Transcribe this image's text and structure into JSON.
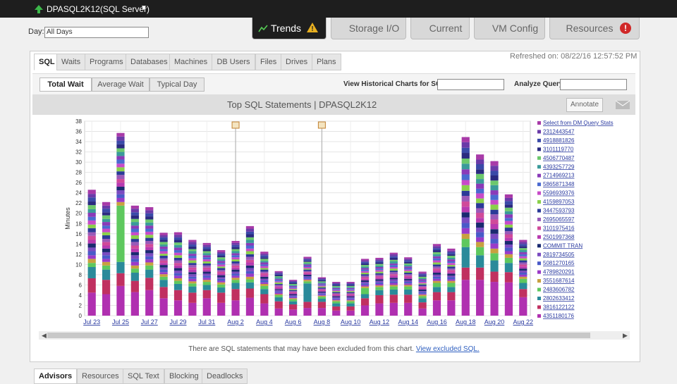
{
  "header": {
    "server": "DPASQL2K12(SQL Server)",
    "day_label": "Day:",
    "day_value": "All Days",
    "tabs": [
      "Trends",
      "Storage I/O",
      "Current",
      "VM Config",
      "Resources"
    ]
  },
  "subtabs": [
    "SQL",
    "Waits",
    "Programs",
    "Databases",
    "Machines",
    "DB Users",
    "Files",
    "Drives",
    "Plans"
  ],
  "refreshed": "Refreshed on: 08/22/16 12:57:52 PM",
  "toolbar": {
    "modes": [
      "Total Wait",
      "Average Wait",
      "Typical Day"
    ],
    "historical_label": "View Historical Charts for SQL:",
    "analyze_label": "Analyze Query:",
    "annotate": "Annotate"
  },
  "chart_data": {
    "type": "stacked-bar",
    "title": "Top SQL Statements | DPASQL2K12",
    "y_label": "Minutes",
    "categories": [
      "Jul 23",
      null,
      "Jul 25",
      null,
      "Jul 27",
      null,
      "Jul 29",
      null,
      "Jul 31",
      null,
      "Aug 2",
      null,
      "Aug 4",
      null,
      "Aug 6",
      null,
      "Aug 8",
      null,
      "Aug 10",
      null,
      "Aug 12",
      null,
      "Aug 14",
      null,
      "Aug 16",
      null,
      "Aug 18",
      null,
      "Aug 20",
      null,
      "Aug 22"
    ],
    "ylim": [
      0,
      38
    ],
    "yticks": [
      0,
      2,
      4,
      6,
      8,
      10,
      12,
      14,
      16,
      18,
      20,
      22,
      24,
      26,
      28,
      30,
      32,
      34,
      36,
      38
    ],
    "grid": true,
    "series": [
      {
        "name": "Select from DM Query Stats",
        "color": "#a83aa8",
        "values": [
          0.8,
          0.7,
          0.7,
          0.6,
          0.6,
          0.5,
          0.5,
          0.4,
          0.4,
          0.4,
          0.4,
          0.5,
          0.4,
          0.2,
          0.2,
          0.3,
          0.2,
          0.2,
          0.2,
          0.3,
          0.3,
          0.3,
          0.3,
          0.3,
          0.4,
          0.4,
          1,
          1,
          0.9,
          0.7,
          0.4
        ]
      },
      {
        "name": "2312443547",
        "color": "#6a3aa8",
        "values": [
          0.7,
          0.6,
          0.8,
          0.7,
          0.6,
          0.4,
          0.5,
          0.5,
          0.4,
          0.3,
          0.4,
          0.6,
          0.3,
          0.3,
          0.2,
          0.2,
          0.2,
          0.2,
          0.2,
          0.3,
          0.3,
          0.4,
          0.3,
          0.2,
          0.4,
          0.3,
          1.1,
          0.9,
          1,
          0.6,
          0.4
        ]
      },
      {
        "name": "4918881826",
        "color": "#3a4aa8",
        "values": [
          0.8,
          0.7,
          0.7,
          0.6,
          0.6,
          0.5,
          0.5,
          0.4,
          0.4,
          0.4,
          0.4,
          0.5,
          0.4,
          0.2,
          0.2,
          0.3,
          0.2,
          0.2,
          0.2,
          0.3,
          0.3,
          0.3,
          0.3,
          0.3,
          0.4,
          0.4,
          1,
          1,
          0.9,
          0.7,
          0.4
        ]
      },
      {
        "name": "3101119770",
        "color": "#2a2a80",
        "values": [
          0.7,
          0.6,
          0.8,
          0.7,
          0.6,
          0.4,
          0.5,
          0.5,
          0.4,
          0.3,
          0.4,
          0.6,
          0.3,
          0.3,
          0.2,
          0.2,
          0.2,
          0.2,
          0.2,
          0.3,
          0.3,
          0.4,
          0.3,
          0.2,
          0.4,
          0.3,
          1.1,
          0.9,
          1,
          0.6,
          0.4
        ]
      },
      {
        "name": "4506770487",
        "color": "#6cc86c",
        "values": [
          0.8,
          0.7,
          0.7,
          0.6,
          0.6,
          0.5,
          0.5,
          0.4,
          0.4,
          0.4,
          0.4,
          0.5,
          0.4,
          0.2,
          0.2,
          0.3,
          0.2,
          0.2,
          0.2,
          0.3,
          0.3,
          0.3,
          0.3,
          0.3,
          0.4,
          0.4,
          1,
          1,
          0.9,
          0.7,
          0.4
        ]
      },
      {
        "name": "4393257729",
        "color": "#3a9a9a",
        "values": [
          0.7,
          0.6,
          0.8,
          0.7,
          0.6,
          0.4,
          0.5,
          0.5,
          0.4,
          0.3,
          0.4,
          0.6,
          0.3,
          0.3,
          0.2,
          0.2,
          0.2,
          0.2,
          0.2,
          0.3,
          0.3,
          0.4,
          0.3,
          0.2,
          0.4,
          0.3,
          1.1,
          0.9,
          1,
          0.6,
          0.4
        ]
      },
      {
        "name": "2714969213",
        "color": "#8a3ab8",
        "values": [
          0.8,
          0.7,
          0.7,
          0.6,
          0.6,
          0.5,
          0.5,
          0.4,
          0.4,
          0.4,
          0.4,
          0.5,
          0.4,
          0.2,
          0.2,
          0.3,
          0.2,
          0.2,
          0.2,
          0.3,
          0.3,
          0.3,
          0.3,
          0.3,
          0.4,
          0.4,
          1,
          1,
          0.9,
          0.7,
          0.4
        ]
      },
      {
        "name": "5865871348",
        "color": "#4a6ad0",
        "values": [
          0.7,
          0.6,
          0.8,
          0.7,
          0.6,
          0.4,
          0.5,
          0.5,
          0.4,
          0.3,
          0.4,
          0.6,
          0.3,
          0.3,
          0.2,
          0.2,
          0.2,
          0.2,
          0.2,
          0.3,
          0.3,
          0.4,
          0.3,
          0.2,
          0.4,
          0.3,
          1.1,
          0.9,
          1,
          0.6,
          0.4
        ]
      },
      {
        "name": "5596939376",
        "color": "#c84ac8",
        "values": [
          0.8,
          0.7,
          0.7,
          0.6,
          0.6,
          0.5,
          0.5,
          0.4,
          0.4,
          0.4,
          0.4,
          0.5,
          0.4,
          0.2,
          0.2,
          0.3,
          0.2,
          0.2,
          0.2,
          0.3,
          0.3,
          0.3,
          0.3,
          0.3,
          0.4,
          0.4,
          1,
          1,
          0.9,
          0.7,
          0.4
        ]
      },
      {
        "name": "4159897053",
        "color": "#8ad04a",
        "values": [
          0.7,
          0.6,
          0.8,
          0.7,
          0.6,
          0.4,
          0.5,
          0.5,
          0.4,
          0.3,
          0.4,
          0.6,
          0.3,
          0.3,
          0.2,
          0.2,
          0.2,
          0.2,
          0.2,
          0.3,
          0.3,
          0.4,
          0.3,
          0.2,
          0.4,
          0.3,
          1.1,
          0.9,
          1,
          0.6,
          0.4
        ]
      },
      {
        "name": "3447593793",
        "color": "#2a3a98",
        "values": [
          0.8,
          0.7,
          0.7,
          0.6,
          0.6,
          0.5,
          0.5,
          0.4,
          0.4,
          0.4,
          0.4,
          0.5,
          0.4,
          0.2,
          0.2,
          0.3,
          0.2,
          0.2,
          0.2,
          0.3,
          0.3,
          0.3,
          0.3,
          0.3,
          0.4,
          0.4,
          1,
          1,
          0.9,
          0.7,
          0.4
        ]
      },
      {
        "name": "2695065597",
        "color": "#9a5ab8",
        "values": [
          0.7,
          0.6,
          0.8,
          0.7,
          0.6,
          0.4,
          0.5,
          0.5,
          0.4,
          0.3,
          0.4,
          0.6,
          0.3,
          0.3,
          0.2,
          0.2,
          0.2,
          0.2,
          0.2,
          0.3,
          0.3,
          0.4,
          0.3,
          0.2,
          0.4,
          0.3,
          1.1,
          0.9,
          1,
          0.6,
          0.4
        ]
      },
      {
        "name": "3101975416",
        "color": "#d04a9a",
        "values": [
          0.8,
          0.7,
          0.7,
          0.6,
          0.6,
          0.5,
          0.5,
          0.4,
          0.4,
          0.4,
          0.4,
          0.5,
          0.4,
          0.2,
          0.2,
          0.3,
          0.2,
          0.2,
          0.2,
          0.3,
          0.3,
          0.3,
          0.3,
          0.3,
          0.4,
          0.4,
          1,
          1,
          0.9,
          0.7,
          0.4
        ]
      },
      {
        "name": "2501997368",
        "color": "#b83ab0",
        "values": [
          0.7,
          0.6,
          0.8,
          0.7,
          0.6,
          0.4,
          0.5,
          0.5,
          0.4,
          0.3,
          0.4,
          0.6,
          0.3,
          0.3,
          0.2,
          0.2,
          0.2,
          0.2,
          0.2,
          0.3,
          0.3,
          0.4,
          0.3,
          0.2,
          0.4,
          0.3,
          1.1,
          0.9,
          1,
          0.6,
          0.4
        ]
      },
      {
        "name": "COMMIT TRAN",
        "color": "#1a2a70",
        "values": [
          0.8,
          0.7,
          0.7,
          0.6,
          0.6,
          0.5,
          0.5,
          0.4,
          0.4,
          0.4,
          0.4,
          0.5,
          0.4,
          0.2,
          0.2,
          0.3,
          0.2,
          0.2,
          0.2,
          0.3,
          0.3,
          0.3,
          0.3,
          0.3,
          0.4,
          0.4,
          1,
          1,
          0.9,
          0.7,
          0.4
        ]
      },
      {
        "name": "2819734505",
        "color": "#7a4ac0",
        "values": [
          0.7,
          0.6,
          0.8,
          0.7,
          0.6,
          0.4,
          0.5,
          0.5,
          0.4,
          0.3,
          0.4,
          0.6,
          0.3,
          0.3,
          0.2,
          0.2,
          0.2,
          0.2,
          0.2,
          0.3,
          0.3,
          0.4,
          0.3,
          0.2,
          0.4,
          0.3,
          1.1,
          0.9,
          1,
          0.6,
          0.4
        ]
      },
      {
        "name": "5081270165",
        "color": "#4a5ac8",
        "values": [
          0.8,
          0.7,
          0.7,
          0.6,
          0.6,
          0.5,
          0.5,
          0.4,
          0.4,
          0.4,
          0.4,
          0.5,
          0.4,
          0.2,
          0.2,
          0.3,
          0.2,
          0.2,
          0.2,
          0.3,
          0.3,
          0.3,
          0.3,
          0.3,
          0.4,
          0.4,
          1,
          1,
          0.9,
          0.7,
          0.4
        ]
      },
      {
        "name": "4789820291",
        "color": "#9a3ac8",
        "values": [
          0.7,
          0.6,
          0.8,
          0.7,
          0.6,
          0.4,
          0.5,
          0.5,
          0.4,
          0.3,
          0.4,
          0.6,
          0.3,
          0.3,
          0.2,
          0.2,
          0.2,
          0.2,
          0.2,
          0.3,
          0.3,
          0.4,
          0.3,
          0.2,
          0.4,
          0.3,
          1.1,
          0.9,
          1,
          0.6,
          0.4
        ]
      },
      {
        "name": "3551687614",
        "color": "#c8a040",
        "values": [
          0.8,
          0.7,
          0.7,
          0.6,
          0.6,
          0.5,
          0.5,
          0.4,
          0.4,
          0.4,
          0.4,
          0.5,
          0.4,
          0.2,
          0.2,
          0.3,
          0.2,
          0.2,
          0.2,
          0.3,
          0.3,
          0.3,
          0.3,
          0.3,
          0.4,
          0.4,
          1,
          1,
          0.9,
          0.7,
          0.4
        ]
      },
      {
        "name": "2483606782",
        "color": "#5ec85e",
        "values": [
          0.8,
          0.8,
          11,
          0.8,
          0.8,
          0.6,
          0.6,
          0.6,
          0.6,
          0.6,
          0.6,
          0.6,
          0.6,
          0.4,
          0.4,
          0.4,
          0.4,
          0.4,
          0.4,
          1.2,
          0.6,
          0.6,
          0.6,
          0.4,
          0.8,
          0.8,
          1.6,
          1.6,
          1.4,
          1,
          0.8
        ]
      },
      {
        "name": "2802633412",
        "color": "#2a8a9a",
        "values": [
          2.2,
          2,
          2.2,
          1.6,
          1.6,
          1.4,
          1.2,
          1.2,
          1,
          1,
          1.2,
          1.2,
          1,
          0.8,
          0.6,
          3.6,
          0.6,
          0.6,
          0.6,
          0.8,
          1,
          1,
          1,
          0.8,
          1,
          1,
          4,
          2.4,
          2.2,
          1.8,
          1.2
        ]
      },
      {
        "name": "3816122122",
        "color": "#c03060",
        "values": [
          2.8,
          2.8,
          2.5,
          2.2,
          2.4,
          2.2,
          2,
          2,
          1.6,
          2,
          2.2,
          1.8,
          1.8,
          1.4,
          1,
          1.2,
          1.2,
          0.8,
          0.8,
          1.4,
          1.6,
          1.6,
          1.6,
          1.2,
          1.6,
          1.6,
          2.4,
          2.4,
          2,
          2,
          1.6
        ]
      },
      {
        "name": "4351180176",
        "color": "#b030b0",
        "values": [
          4.5,
          4.2,
          5.8,
          4.6,
          5,
          3.4,
          3,
          2.5,
          3.4,
          2.5,
          3,
          3.5,
          2.4,
          1.4,
          1.2,
          1.5,
          1.5,
          1,
          1,
          2,
          2.4,
          2.5,
          2.5,
          1.4,
          3,
          3,
          7,
          7,
          6.6,
          6.5,
          3.6
        ]
      }
    ]
  },
  "footer_note": "There are SQL statements that may have been excluded from this chart.",
  "footer_link": "View excluded SQL.",
  "bottom_tabs": [
    "Advisors",
    "Resources",
    "SQL Text",
    "Blocking",
    "Deadlocks"
  ]
}
